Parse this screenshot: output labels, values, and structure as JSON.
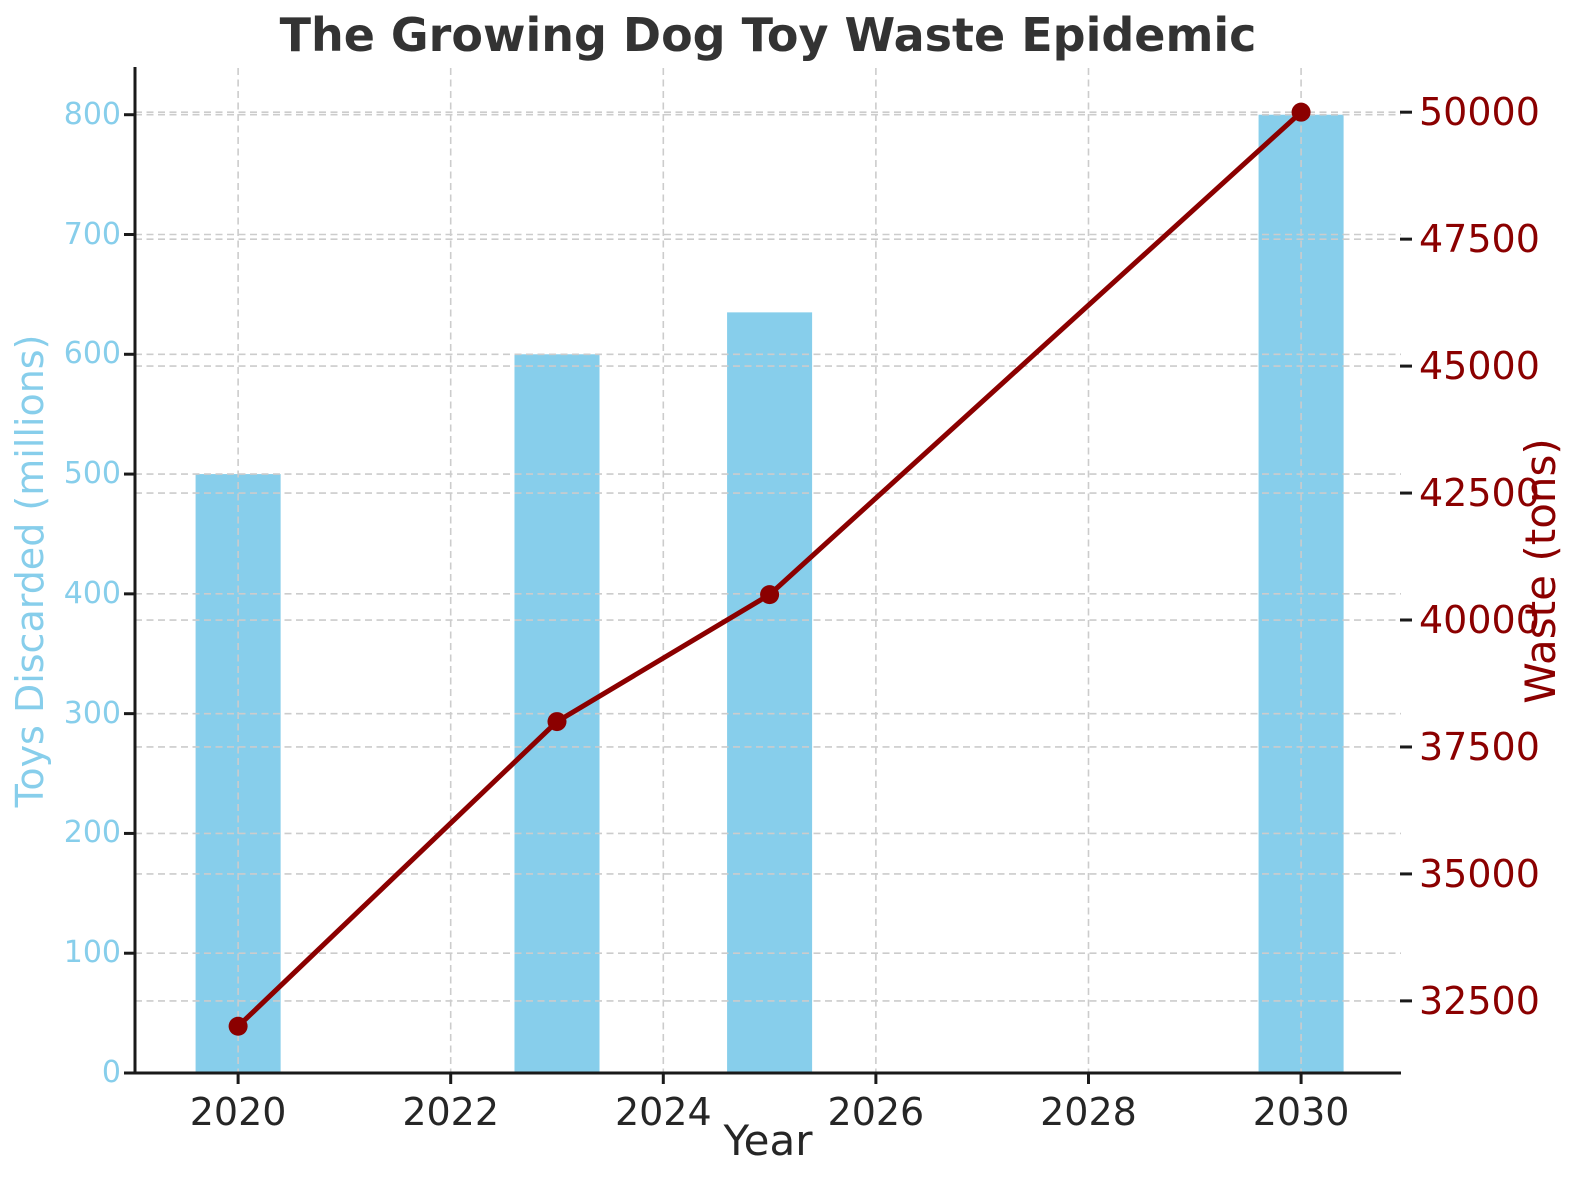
{
  "chart_data": {
    "type": "bar",
    "subtype": "dual-axis bar + line combo",
    "title": "The Growing Dog Toy Waste Epidemic",
    "x": [
      2020,
      2023,
      2025,
      2030
    ],
    "series": [
      {
        "name": "Toys Discarded (millions)",
        "chart": "bar",
        "axis": "left",
        "color": "#87CEEB",
        "values": [
          500,
          600,
          635,
          800
        ]
      },
      {
        "name": "Waste (tons)",
        "chart": "line",
        "axis": "right",
        "color": "#8B0000",
        "marker": "circle",
        "values": [
          32000,
          38000,
          40500,
          50000
        ]
      }
    ],
    "x_axis": {
      "label": "Year",
      "ticks": [
        2020,
        2022,
        2024,
        2026,
        2028,
        2030
      ],
      "min": 2019.03,
      "max": 2030.94
    },
    "left_axis": {
      "label": "Toys Discarded (millions)",
      "color": "#87CEEB",
      "ticks": [
        0,
        100,
        200,
        300,
        400,
        500,
        600,
        700,
        800
      ],
      "min": 0,
      "max": 839
    },
    "right_axis": {
      "label": "Waste (tons)",
      "color": "#8B0000",
      "ticks": [
        32500,
        35000,
        37500,
        40000,
        42500,
        45000,
        47500,
        50000
      ],
      "min": 31080,
      "max": 50870
    },
    "bar_width_years": 0.8,
    "grid": true,
    "grid_style": "dashed",
    "legend_position": "none",
    "background_color": "#ffffff",
    "title_color": "#333333",
    "x_tick_color": "#262626",
    "spine_color": "#1a1a1a",
    "grid_color": "#cccccc"
  }
}
